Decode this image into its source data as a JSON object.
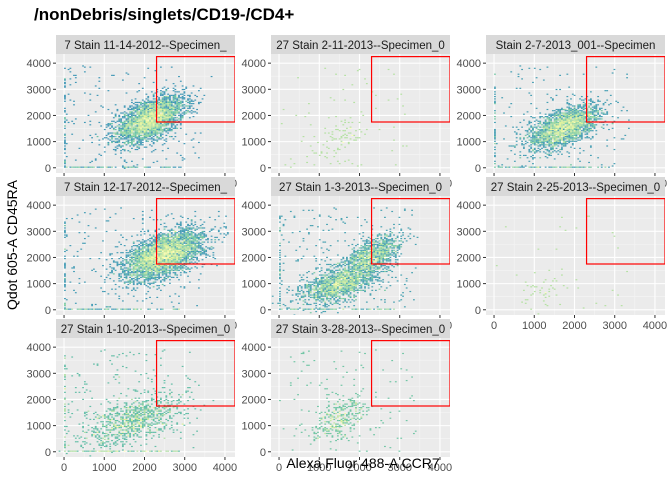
{
  "chart_data": {
    "type": "heatmap",
    "title": "/nonDebris/singlets/CD19-/CD4+",
    "xlabel": "Alexa Fluor 488-A CCR7",
    "ylabel": "Qdot 605-A CD45RA",
    "xlim": [
      -200,
      4250
    ],
    "ylim": [
      -200,
      4350
    ],
    "x_ticks": [
      0,
      1000,
      2000,
      3000,
      4000
    ],
    "y_ticks": [
      0,
      1000,
      2000,
      3000,
      4000
    ],
    "grid": true,
    "gate": {
      "x_min": 2300,
      "x_max": 4250,
      "y_min": 1750,
      "y_max": 4250,
      "color": "#ff0000"
    },
    "color_scale": [
      "#5e4fa2",
      "#3288bd",
      "#66c2a5",
      "#abdda4",
      "#e6f598",
      "#ffffbf"
    ],
    "panels": [
      {
        "label": "7 Stain 11-14-2012--Specimen_",
        "clusters": [
          {
            "x": 2150,
            "y": 1850,
            "sx": 420,
            "sy": 430,
            "n": 3200
          }
        ],
        "sparse": 160,
        "xaxis_line": true
      },
      {
        "label": "27 Stain 2-11-2013--Specimen_0",
        "clusters": [
          {
            "x": 1500,
            "y": 1100,
            "sx": 380,
            "sy": 450,
            "n": 90
          }
        ],
        "sparse": 50,
        "xaxis_line": false
      },
      {
        "label": "Stain 2-7-2013_001--Specimen",
        "clusters": [
          {
            "x": 1750,
            "y": 1550,
            "sx": 440,
            "sy": 400,
            "n": 2400
          }
        ],
        "sparse": 110,
        "xaxis_line": true
      },
      {
        "label": "7 Stain 12-17-2012--Specimen_",
        "clusters": [
          {
            "x": 2500,
            "y": 2100,
            "sx": 480,
            "sy": 460,
            "n": 3800
          }
        ],
        "sparse": 190,
        "xaxis_line": true
      },
      {
        "label": "27 Stain 1-3-2013--Specimen_0",
        "clusters": [
          {
            "x": 1500,
            "y": 1000,
            "sx": 450,
            "sy": 370,
            "n": 1600
          },
          {
            "x": 2300,
            "y": 2050,
            "sx": 350,
            "sy": 380,
            "n": 1100
          }
        ],
        "sparse": 220,
        "xaxis_line": true
      },
      {
        "label": "27 Stain 2-25-2013--Specimen_0",
        "clusters": [
          {
            "x": 1350,
            "y": 900,
            "sx": 400,
            "sy": 550,
            "n": 45
          }
        ],
        "sparse": 25,
        "xaxis_line": false
      },
      {
        "label": "27 Stain 1-10-2013--Specimen_0",
        "clusters": [
          {
            "x": 1700,
            "y": 1200,
            "sx": 600,
            "sy": 500,
            "n": 900
          }
        ],
        "sparse": 180,
        "xaxis_line": true
      },
      {
        "label": "27 Stain 3-28-2013--Specimen_0",
        "clusters": [
          {
            "x": 1500,
            "y": 1250,
            "sx": 320,
            "sy": 400,
            "n": 320
          }
        ],
        "sparse": 110,
        "xaxis_line": false
      }
    ]
  }
}
